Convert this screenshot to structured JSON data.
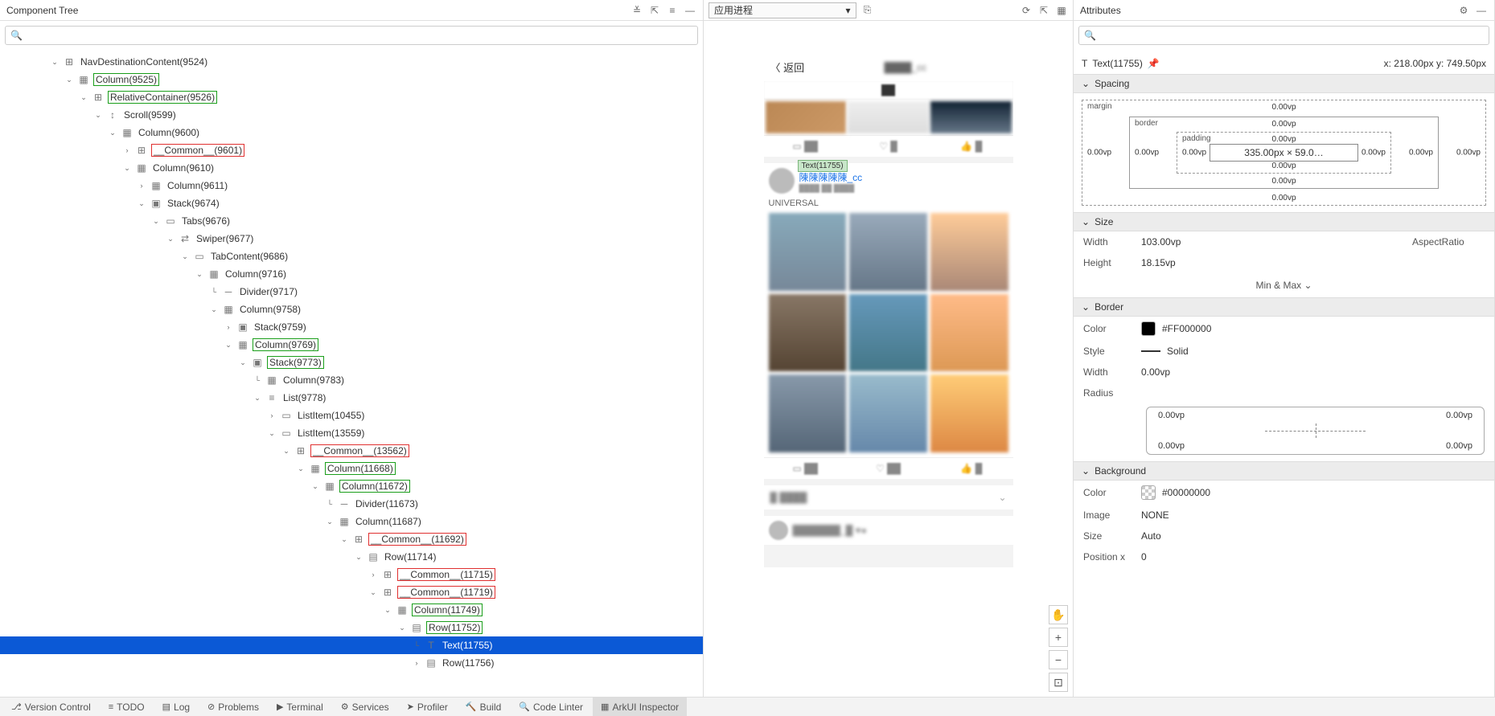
{
  "leftPanel": {
    "title": "Component Tree",
    "tree": [
      {
        "d": 3,
        "exp": "v",
        "icon": "⊞",
        "label": "NavDestinationContent(9524)"
      },
      {
        "d": 4,
        "exp": "v",
        "icon": "▦",
        "label": "Column(9525)",
        "box": "green"
      },
      {
        "d": 5,
        "exp": "v",
        "icon": "⊞",
        "label": "RelativeContainer(9526)",
        "box": "green"
      },
      {
        "d": 6,
        "exp": "v",
        "icon": "↕",
        "label": "Scroll(9599)"
      },
      {
        "d": 7,
        "exp": "v",
        "icon": "▦",
        "label": "Column(9600)"
      },
      {
        "d": 8,
        "exp": ">",
        "icon": "⊞",
        "label": "__Common__(9601)",
        "box": "red"
      },
      {
        "d": 8,
        "exp": "v",
        "icon": "▦",
        "label": "Column(9610)"
      },
      {
        "d": 9,
        "exp": ">",
        "icon": "▦",
        "label": "Column(9611)"
      },
      {
        "d": 9,
        "exp": "v",
        "icon": "▣",
        "label": "Stack(9674)"
      },
      {
        "d": 10,
        "exp": "v",
        "icon": "▭",
        "label": "Tabs(9676)"
      },
      {
        "d": 11,
        "exp": "v",
        "icon": "⇄",
        "label": "Swiper(9677)"
      },
      {
        "d": 12,
        "exp": "v",
        "icon": "▭",
        "label": "TabContent(9686)"
      },
      {
        "d": 13,
        "exp": "v",
        "icon": "▦",
        "label": "Column(9716)"
      },
      {
        "d": 14,
        "exp": "",
        "icon": "─",
        "label": "Divider(9717)",
        "pipe": true
      },
      {
        "d": 14,
        "exp": "v",
        "icon": "▦",
        "label": "Column(9758)"
      },
      {
        "d": 15,
        "exp": ">",
        "icon": "▣",
        "label": "Stack(9759)"
      },
      {
        "d": 15,
        "exp": "v",
        "icon": "▦",
        "label": "Column(9769)",
        "box": "green"
      },
      {
        "d": 16,
        "exp": "v",
        "icon": "▣",
        "label": "Stack(9773)",
        "box": "green"
      },
      {
        "d": 17,
        "exp": "",
        "icon": "▦",
        "label": "Column(9783)",
        "pipe": true
      },
      {
        "d": 17,
        "exp": "v",
        "icon": "≡",
        "label": "List(9778)"
      },
      {
        "d": 18,
        "exp": ">",
        "icon": "▭",
        "label": "ListItem(10455)"
      },
      {
        "d": 18,
        "exp": "v",
        "icon": "▭",
        "label": "ListItem(13559)"
      },
      {
        "d": 19,
        "exp": "v",
        "icon": "⊞",
        "label": "__Common__(13562)",
        "box": "red"
      },
      {
        "d": 20,
        "exp": "v",
        "icon": "▦",
        "label": "Column(11668)",
        "box": "green"
      },
      {
        "d": 21,
        "exp": "v",
        "icon": "▦",
        "label": "Column(11672)",
        "box": "green"
      },
      {
        "d": 22,
        "exp": "",
        "icon": "─",
        "label": "Divider(11673)",
        "pipe": true
      },
      {
        "d": 22,
        "exp": "v",
        "icon": "▦",
        "label": "Column(11687)"
      },
      {
        "d": 23,
        "exp": "v",
        "icon": "⊞",
        "label": "__Common__(11692)",
        "box": "red"
      },
      {
        "d": 24,
        "exp": "v",
        "icon": "▤",
        "label": "Row(11714)"
      },
      {
        "d": 25,
        "exp": ">",
        "icon": "⊞",
        "label": "__Common__(11715)",
        "box": "red"
      },
      {
        "d": 25,
        "exp": "v",
        "icon": "⊞",
        "label": "__Common__(11719)",
        "box": "red"
      },
      {
        "d": 26,
        "exp": "v",
        "icon": "▦",
        "label": "Column(11749)",
        "box": "green"
      },
      {
        "d": 27,
        "exp": "v",
        "icon": "▤",
        "label": "Row(11752)",
        "box": "green"
      },
      {
        "d": 28,
        "exp": "",
        "icon": "T",
        "label": "Text(11755)",
        "selected": true,
        "pipe": true
      },
      {
        "d": 28,
        "exp": ">",
        "icon": "▤",
        "label": "Row(11756)"
      }
    ]
  },
  "midPanel": {
    "appLabel": "应用进程",
    "phone": {
      "back": "〈 返回",
      "tooltip": "Text(11755)",
      "username": "陳陳陳陳陳_cc",
      "postText": "UNIVERSAL"
    }
  },
  "rightPanel": {
    "title": "Attributes",
    "selected": {
      "label": "Text(11755)",
      "coords": "x: 218.00px  y: 749.50px"
    },
    "spacing": {
      "title": "Spacing",
      "margin": "0.00vp",
      "border": "0.00vp",
      "padding": "0.00vp",
      "content": "335.00px × 59.0…"
    },
    "size": {
      "title": "Size",
      "width": {
        "k": "Width",
        "v": "103.00vp"
      },
      "height": {
        "k": "Height",
        "v": "18.15vp"
      },
      "aspect": "AspectRatio",
      "minmax": "Min & Max"
    },
    "border": {
      "title": "Border",
      "color": {
        "k": "Color",
        "v": "#FF000000",
        "hex": "#000000"
      },
      "style": {
        "k": "Style",
        "v": "Solid"
      },
      "width": {
        "k": "Width",
        "v": "0.00vp"
      },
      "radius": {
        "k": "Radius",
        "tl": "0.00vp",
        "tr": "0.00vp",
        "bl": "0.00vp",
        "br": "0.00vp"
      }
    },
    "background": {
      "title": "Background",
      "color": {
        "k": "Color",
        "v": "#00000000",
        "hex": "transparent"
      },
      "image": {
        "k": "Image",
        "v": "NONE"
      },
      "size": {
        "k": "Size",
        "v": "Auto"
      },
      "posx": {
        "k": "Position x",
        "v": "0"
      }
    }
  },
  "bottomBar": [
    {
      "icon": "⎇",
      "label": "Version Control"
    },
    {
      "icon": "≡",
      "label": "TODO"
    },
    {
      "icon": "▤",
      "label": "Log"
    },
    {
      "icon": "⊘",
      "label": "Problems"
    },
    {
      "icon": "▶",
      "label": "Terminal"
    },
    {
      "icon": "⚙",
      "label": "Services"
    },
    {
      "icon": "➤",
      "label": "Profiler"
    },
    {
      "icon": "🔨",
      "label": "Build"
    },
    {
      "icon": "🔍",
      "label": "Code Linter"
    },
    {
      "icon": "▦",
      "label": "ArkUI Inspector",
      "active": true
    }
  ]
}
